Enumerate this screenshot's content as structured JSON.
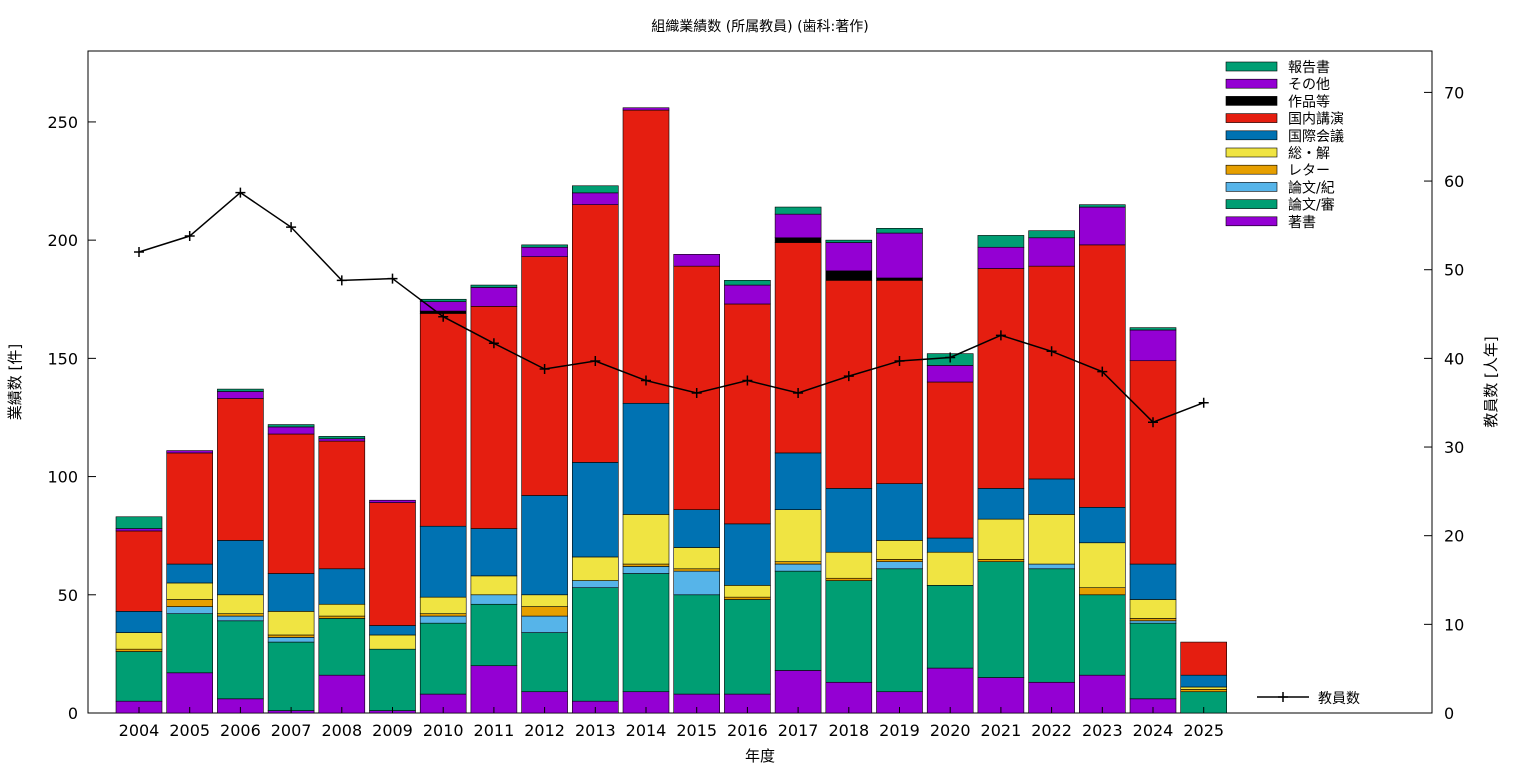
{
  "chart_data": {
    "type": "bar",
    "stacked": true,
    "title": "組織業績数 (所属教員) (歯科:著作)",
    "xlabel": "年度",
    "ylabel": "業績数 [件]",
    "y2label": "教員数 [人年]",
    "ylim": [
      0,
      280
    ],
    "y2lim": [
      0,
      74.67
    ],
    "yticks": [
      0,
      50,
      100,
      150,
      200,
      250
    ],
    "y2ticks": [
      0,
      10,
      20,
      30,
      40,
      50,
      60,
      70
    ],
    "grid": false,
    "legend_position": "top-right",
    "categories": [
      "2004",
      "2005",
      "2006",
      "2007",
      "2008",
      "2009",
      "2010",
      "2011",
      "2012",
      "2013",
      "2014",
      "2015",
      "2016",
      "2017",
      "2018",
      "2019",
      "2020",
      "2021",
      "2022",
      "2023",
      "2024",
      "2025"
    ],
    "series": [
      {
        "name": "著書",
        "color": "#9400D3",
        "values": [
          5,
          17,
          6,
          1,
          16,
          1,
          8,
          20,
          9,
          5,
          9,
          8,
          8,
          18,
          13,
          9,
          19,
          15,
          13,
          16,
          6,
          0
        ]
      },
      {
        "name": "論文/審",
        "color": "#009E73",
        "values": [
          21,
          25,
          33,
          29,
          24,
          26,
          30,
          26,
          25,
          48,
          50,
          42,
          40,
          42,
          43,
          52,
          35,
          49,
          48,
          34,
          32,
          9
        ]
      },
      {
        "name": "論文/紀",
        "color": "#56B4E9",
        "values": [
          0,
          3,
          2,
          2,
          0,
          0,
          3,
          4,
          7,
          3,
          3,
          10,
          0,
          3,
          0,
          3,
          0,
          0,
          2,
          0,
          1,
          0
        ]
      },
      {
        "name": "レター",
        "color": "#E69F00",
        "values": [
          1,
          3,
          1,
          1,
          1,
          0,
          1,
          0,
          4,
          0,
          1,
          1,
          1,
          1,
          1,
          1,
          0,
          1,
          0,
          3,
          1,
          1
        ]
      },
      {
        "name": "総・解",
        "color": "#F0E442",
        "values": [
          7,
          7,
          8,
          10,
          5,
          6,
          7,
          8,
          5,
          10,
          21,
          9,
          5,
          22,
          11,
          8,
          14,
          17,
          21,
          19,
          8,
          1
        ]
      },
      {
        "name": "国際会議",
        "color": "#0072B2",
        "values": [
          9,
          8,
          23,
          16,
          15,
          4,
          30,
          20,
          42,
          40,
          47,
          16,
          26,
          24,
          27,
          24,
          6,
          13,
          15,
          15,
          15,
          5
        ]
      },
      {
        "name": "国内講演",
        "color": "#E51E10",
        "values": [
          34,
          47,
          60,
          59,
          54,
          52,
          90,
          94,
          101,
          109,
          124,
          103,
          93,
          89,
          88,
          86,
          66,
          93,
          90,
          111,
          86,
          14
        ]
      },
      {
        "name": "作品等",
        "color": "#000000",
        "values": [
          0,
          0,
          0,
          0,
          0,
          0,
          1,
          0,
          0,
          0,
          0,
          0,
          0,
          2,
          4,
          1,
          0,
          0,
          0,
          0,
          0,
          0
        ]
      },
      {
        "name": "その他",
        "color": "#9400D3",
        "values": [
          1,
          1,
          3,
          3,
          1,
          1,
          4,
          8,
          4,
          5,
          1,
          5,
          8,
          10,
          12,
          19,
          7,
          9,
          12,
          16,
          13,
          0
        ]
      },
      {
        "name": "報告書",
        "color": "#009E73",
        "values": [
          5,
          0,
          1,
          1,
          1,
          0,
          1,
          1,
          1,
          3,
          0,
          0,
          2,
          3,
          1,
          2,
          5,
          5,
          3,
          1,
          1,
          0
        ]
      }
    ],
    "line": {
      "name": "教員数",
      "axis": "right",
      "color": "#000000",
      "values": [
        52.0,
        53.8,
        58.7,
        54.8,
        48.8,
        49.0,
        44.7,
        41.7,
        38.8,
        39.7,
        37.5,
        36.1,
        37.5,
        36.1,
        38.0,
        39.7,
        40.1,
        42.6,
        40.8,
        38.5,
        32.8,
        35.0
      ]
    }
  }
}
